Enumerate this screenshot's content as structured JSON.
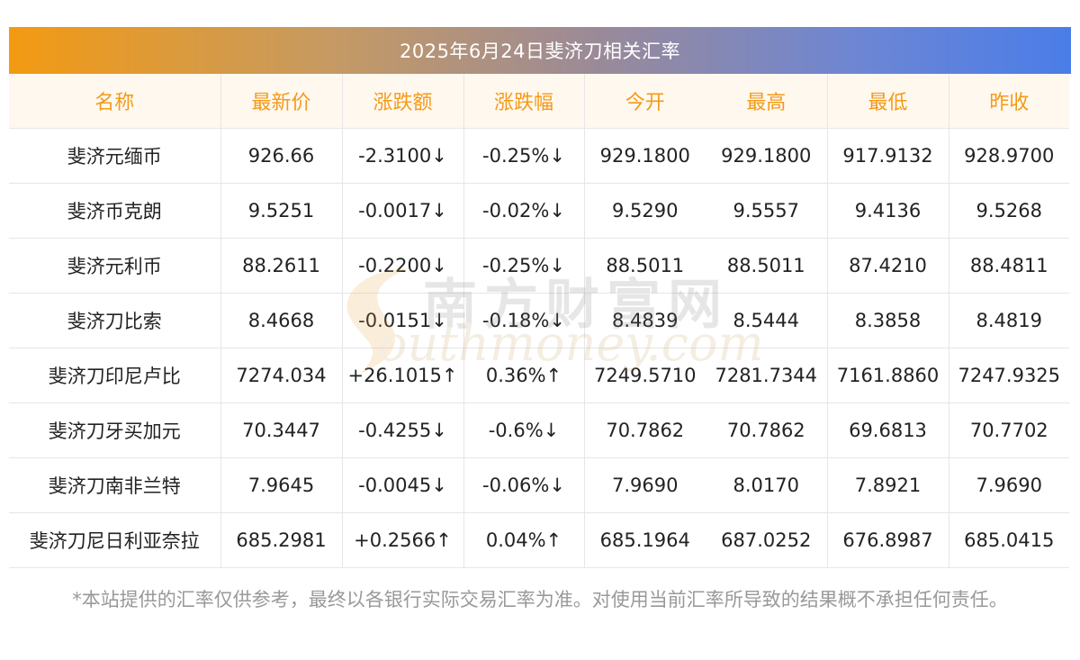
{
  "banner": {
    "title": "2025年6月24日斐济刀相关汇率"
  },
  "table": {
    "headers": [
      "名称",
      "最新价",
      "涨跌额",
      "涨跌幅",
      "今开",
      "最高",
      "最低",
      "昨收"
    ],
    "rows": [
      {
        "name": "斐济元缅币",
        "price": "926.66",
        "change": "-2.3100↓",
        "pct": "-0.25%↓",
        "open": "929.1800",
        "high": "929.1800",
        "low": "917.9132",
        "prev": "928.9700",
        "dir": "down"
      },
      {
        "name": "斐济币克朗",
        "price": "9.5251",
        "change": "-0.0017↓",
        "pct": "-0.02%↓",
        "open": "9.5290",
        "high": "9.5557",
        "low": "9.4136",
        "prev": "9.5268",
        "dir": "down"
      },
      {
        "name": "斐济元利币",
        "price": "88.2611",
        "change": "-0.2200↓",
        "pct": "-0.25%↓",
        "open": "88.5011",
        "high": "88.5011",
        "low": "87.4210",
        "prev": "88.4811",
        "dir": "down"
      },
      {
        "name": "斐济刀比索",
        "price": "8.4668",
        "change": "-0.0151↓",
        "pct": "-0.18%↓",
        "open": "8.4839",
        "high": "8.5444",
        "low": "8.3858",
        "prev": "8.4819",
        "dir": "down"
      },
      {
        "name": "斐济刀印尼卢比",
        "price": "7274.034",
        "change": "+26.1015↑",
        "pct": "0.36%↑",
        "open": "7249.5710",
        "high": "7281.7344",
        "low": "7161.8860",
        "prev": "7247.9325",
        "dir": "up"
      },
      {
        "name": "斐济刀牙买加元",
        "price": "70.3447",
        "change": "-0.4255↓",
        "pct": "-0.6%↓",
        "open": "70.7862",
        "high": "70.7862",
        "low": "69.6813",
        "prev": "70.7702",
        "dir": "down"
      },
      {
        "name": "斐济刀南非兰特",
        "price": "7.9645",
        "change": "-0.0045↓",
        "pct": "-0.06%↓",
        "open": "7.9690",
        "high": "8.0170",
        "low": "7.8921",
        "prev": "7.9690",
        "dir": "down"
      },
      {
        "name": "斐济刀尼日利亚奈拉",
        "price": "685.2981",
        "change": "+0.2566↑",
        "pct": "0.04%↑",
        "open": "685.1964",
        "high": "687.0252",
        "low": "676.8987",
        "prev": "685.0415",
        "dir": "up"
      }
    ]
  },
  "watermark": {
    "cn": "南方财富网",
    "en": "outhmoney.com"
  },
  "disclaimer": "*本站提供的汇率仅供参考，最终以各银行实际交易汇率为准。对使用当前汇率所导致的结果概不承担任何责任。",
  "colors": {
    "header_text": "#f49a18",
    "down": "#1e8a1e",
    "up": "#e8262e",
    "banner_start": "#f39a12",
    "banner_end": "#4a7de8"
  }
}
